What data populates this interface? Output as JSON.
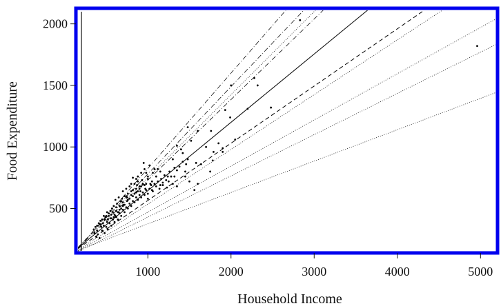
{
  "chart_data": {
    "type": "scatter",
    "title": "",
    "xlabel": "Household Income",
    "ylabel": "Food Expenditure",
    "xlim": [
      160,
      5180
    ],
    "ylim": [
      150,
      2110
    ],
    "x_ticks": [
      1000,
      2000,
      3000,
      4000,
      5000
    ],
    "x_tick_labels": [
      "1000",
      "2000",
      "3000",
      "4000",
      "5000"
    ],
    "y_ticks": [
      500,
      1000,
      1500,
      2000
    ],
    "y_tick_labels": [
      "500",
      "1000",
      "1500",
      "2000"
    ],
    "grid": false,
    "frame_color": "#0000ee",
    "points": [
      [
        2830,
        2030
      ],
      [
        4960,
        1820
      ],
      [
        2000,
        1500
      ],
      [
        2280,
        1560
      ],
      [
        2320,
        1500
      ],
      [
        2200,
        1310
      ],
      [
        1930,
        1300
      ],
      [
        1990,
        1240
      ],
      [
        2480,
        1320
      ],
      [
        1760,
        1130
      ],
      [
        1480,
        1160
      ],
      [
        1600,
        1130
      ],
      [
        1520,
        1050
      ],
      [
        1700,
        1000
      ],
      [
        2050,
        1060
      ],
      [
        1790,
        960
      ],
      [
        1900,
        990
      ],
      [
        1850,
        1030
      ],
      [
        1780,
        890
      ],
      [
        1900,
        960
      ],
      [
        1750,
        800
      ],
      [
        1640,
        860
      ],
      [
        1580,
        870
      ],
      [
        1600,
        700
      ],
      [
        1350,
        1010
      ],
      [
        1400,
        980
      ],
      [
        1420,
        950
      ],
      [
        1300,
        900
      ],
      [
        1460,
        860
      ],
      [
        1350,
        810
      ],
      [
        1240,
        760
      ],
      [
        1300,
        700
      ],
      [
        1350,
        680
      ],
      [
        1450,
        760
      ],
      [
        1500,
        720
      ],
      [
        1560,
        650
      ],
      [
        1230,
        670
      ],
      [
        1180,
        710
      ],
      [
        1150,
        800
      ],
      [
        1100,
        760
      ],
      [
        1080,
        820
      ],
      [
        1020,
        850
      ],
      [
        980,
        790
      ],
      [
        960,
        820
      ],
      [
        1000,
        740
      ],
      [
        940,
        700
      ],
      [
        900,
        680
      ],
      [
        880,
        720
      ],
      [
        860,
        660
      ],
      [
        840,
        700
      ],
      [
        820,
        750
      ],
      [
        800,
        640
      ],
      [
        780,
        680
      ],
      [
        760,
        620
      ],
      [
        740,
        660
      ],
      [
        720,
        600
      ],
      [
        700,
        640
      ],
      [
        690,
        580
      ],
      [
        670,
        560
      ],
      [
        650,
        590
      ],
      [
        630,
        540
      ],
      [
        610,
        570
      ],
      [
        590,
        520
      ],
      [
        570,
        500
      ],
      [
        550,
        480
      ],
      [
        530,
        460
      ],
      [
        510,
        470
      ],
      [
        490,
        430
      ],
      [
        470,
        440
      ],
      [
        450,
        410
      ],
      [
        430,
        400
      ],
      [
        410,
        380
      ],
      [
        390,
        360
      ],
      [
        370,
        350
      ],
      [
        350,
        330
      ],
      [
        400,
        290
      ],
      [
        380,
        270
      ],
      [
        420,
        260
      ],
      [
        450,
        320
      ],
      [
        480,
        300
      ],
      [
        500,
        350
      ],
      [
        520,
        330
      ],
      [
        540,
        380
      ],
      [
        560,
        360
      ],
      [
        580,
        410
      ],
      [
        600,
        390
      ],
      [
        620,
        430
      ],
      [
        640,
        410
      ],
      [
        660,
        460
      ],
      [
        680,
        440
      ],
      [
        700,
        490
      ],
      [
        720,
        470
      ],
      [
        740,
        510
      ],
      [
        760,
        500
      ],
      [
        780,
        540
      ],
      [
        800,
        520
      ],
      [
        820,
        560
      ],
      [
        840,
        550
      ],
      [
        860,
        590
      ],
      [
        880,
        570
      ],
      [
        900,
        610
      ],
      [
        920,
        590
      ],
      [
        940,
        630
      ],
      [
        960,
        610
      ],
      [
        980,
        650
      ],
      [
        1000,
        620
      ],
      [
        1020,
        660
      ],
      [
        1040,
        690
      ],
      [
        1060,
        640
      ],
      [
        1080,
        700
      ],
      [
        1100,
        680
      ],
      [
        1120,
        720
      ],
      [
        1140,
        660
      ],
      [
        1160,
        740
      ],
      [
        1180,
        690
      ],
      [
        1200,
        770
      ],
      [
        1220,
        730
      ],
      [
        1260,
        800
      ],
      [
        1280,
        760
      ],
      [
        1320,
        830
      ],
      [
        1380,
        840
      ],
      [
        1420,
        880
      ],
      [
        1480,
        900
      ],
      [
        550,
        420
      ],
      [
        600,
        450
      ],
      [
        650,
        470
      ],
      [
        700,
        520
      ],
      [
        750,
        560
      ],
      [
        820,
        600
      ],
      [
        880,
        640
      ],
      [
        920,
        680
      ],
      [
        980,
        700
      ],
      [
        1050,
        720
      ],
      [
        620,
        480
      ],
      [
        680,
        500
      ],
      [
        720,
        530
      ],
      [
        780,
        580
      ],
      [
        840,
        620
      ],
      [
        900,
        660
      ],
      [
        960,
        690
      ],
      [
        470,
        360
      ],
      [
        510,
        390
      ],
      [
        560,
        420
      ],
      [
        610,
        440
      ],
      [
        660,
        490
      ],
      [
        710,
        530
      ],
      [
        760,
        570
      ],
      [
        820,
        650
      ],
      [
        870,
        690
      ],
      [
        930,
        730
      ],
      [
        1000,
        760
      ],
      [
        1060,
        790
      ],
      [
        1120,
        820
      ],
      [
        590,
        430
      ],
      [
        640,
        470
      ],
      [
        700,
        550
      ],
      [
        750,
        590
      ],
      [
        800,
        610
      ],
      [
        860,
        630
      ],
      [
        910,
        640
      ],
      [
        970,
        660
      ],
      [
        1030,
        700
      ],
      [
        520,
        410
      ],
      [
        460,
        380
      ],
      [
        440,
        350
      ],
      [
        500,
        440
      ],
      [
        560,
        450
      ],
      [
        620,
        510
      ],
      [
        680,
        560
      ],
      [
        740,
        600
      ],
      [
        800,
        700
      ],
      [
        860,
        740
      ],
      [
        920,
        790
      ],
      [
        950,
        870
      ],
      [
        880,
        760
      ],
      [
        660,
        520
      ],
      [
        580,
        470
      ],
      [
        530,
        440
      ],
      [
        480,
        410
      ],
      [
        430,
        370
      ],
      [
        390,
        320
      ],
      [
        360,
        300
      ],
      [
        1000,
        580
      ],
      [
        1050,
        650
      ],
      [
        1150,
        690
      ],
      [
        1250,
        720
      ],
      [
        1320,
        760
      ],
      [
        1450,
        800
      ]
    ],
    "fit_lines": [
      {
        "style": "solid",
        "slope": 0.555,
        "intercept": 90
      },
      {
        "style": "dashed",
        "slope": 0.465,
        "intercept": 100
      },
      {
        "style": "dotted",
        "slope": 0.445,
        "intercept": 90
      },
      {
        "style": "dotted",
        "slope": 0.375,
        "intercept": 95
      },
      {
        "style": "dotted",
        "slope": 0.335,
        "intercept": 95
      },
      {
        "style": "dotted",
        "slope": 0.255,
        "intercept": 120
      },
      {
        "style": "dotdash",
        "slope": 0.655,
        "intercept": 75
      },
      {
        "style": "dotted",
        "slope": 0.675,
        "intercept": 75
      },
      {
        "style": "dotdash",
        "slope": 0.71,
        "intercept": 70
      },
      {
        "style": "dotdash",
        "slope": 0.775,
        "intercept": 50
      }
    ]
  }
}
